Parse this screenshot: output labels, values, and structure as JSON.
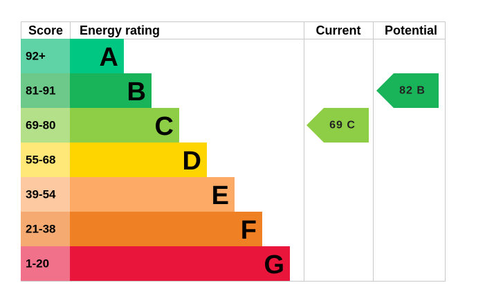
{
  "header": {
    "score": "Score",
    "rating": "Energy rating",
    "current": "Current",
    "potential": "Potential"
  },
  "bands": [
    {
      "score": "92+",
      "letter": "A",
      "color": "#00c781",
      "score_color": "#5fd3a6"
    },
    {
      "score": "81-91",
      "letter": "B",
      "color": "#19b459",
      "score_color": "#6cc98a"
    },
    {
      "score": "69-80",
      "letter": "C",
      "color": "#8dce46",
      "score_color": "#b4e08a"
    },
    {
      "score": "55-68",
      "letter": "D",
      "color": "#ffd500",
      "score_color": "#ffe878"
    },
    {
      "score": "39-54",
      "letter": "E",
      "color": "#fcaa65",
      "score_color": "#fdc9a0"
    },
    {
      "score": "21-38",
      "letter": "F",
      "color": "#ef8023",
      "score_color": "#f5aa72"
    },
    {
      "score": "1-20",
      "letter": "G",
      "color": "#e9153b",
      "score_color": "#f1708a"
    }
  ],
  "current": {
    "label": "69 C",
    "color": "#8dce46"
  },
  "potential": {
    "label": "82 B",
    "color": "#19b459"
  }
}
